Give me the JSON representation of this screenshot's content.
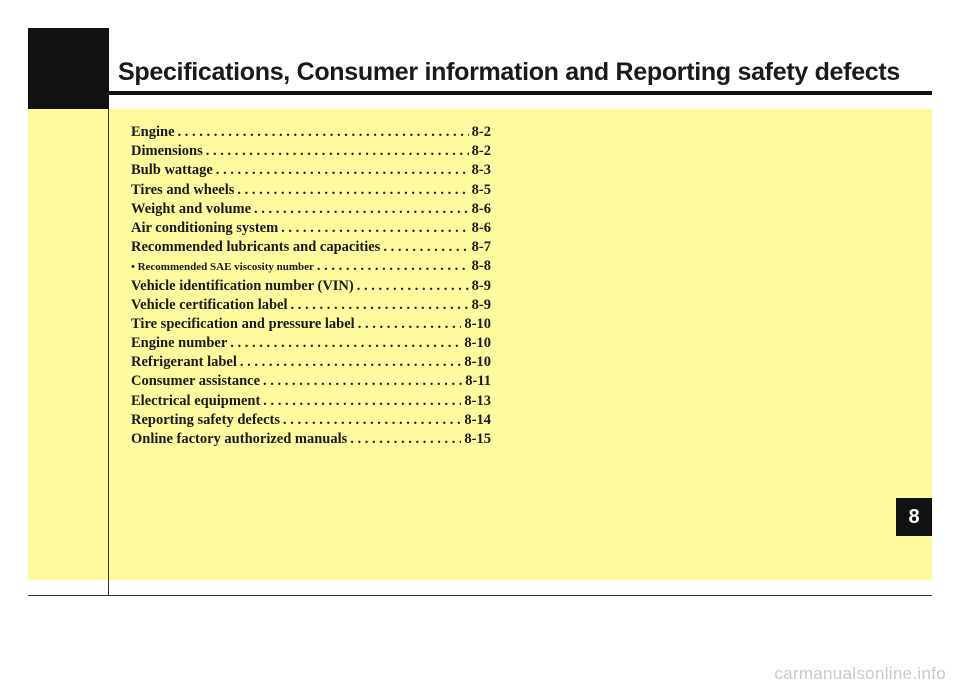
{
  "header": {
    "title": "Specifications, Consumer information and Reporting safety defects"
  },
  "toc": [
    {
      "label": "Engine",
      "page": "8-2"
    },
    {
      "label": "Dimensions",
      "page": "8-2"
    },
    {
      "label": "Bulb wattage",
      "page": "8-3"
    },
    {
      "label": "Tires and wheels",
      "page": "8-5"
    },
    {
      "label": "Weight and volume",
      "page": "8-6"
    },
    {
      "label": "Air conditioning system",
      "page": "8-6"
    },
    {
      "label": "Recommended lubricants and capacities",
      "page": "8-7"
    },
    {
      "label": "• Recommended SAE viscosity number",
      "page": "8-8"
    },
    {
      "label": "Vehicle identification number (VIN)",
      "page": "8-9"
    },
    {
      "label": "Vehicle certification label",
      "page": "8-9"
    },
    {
      "label": "Tire specification and pressure label",
      "page": "8-10"
    },
    {
      "label": "Engine number",
      "page": "8-10"
    },
    {
      "label": "Refrigerant label",
      "page": "8-10"
    },
    {
      "label": "Consumer assistance",
      "page": "8-11"
    },
    {
      "label": "Electrical equipment",
      "page": "8-13"
    },
    {
      "label": "Reporting safety defects",
      "page": "8-14"
    },
    {
      "label": "Online factory authorized manuals",
      "page": "8-15"
    }
  ],
  "chapter_tab": "8",
  "watermark": "carmanualsonline.info",
  "colors": {
    "panel": "#fdfb9e",
    "header_block": "#111111"
  }
}
